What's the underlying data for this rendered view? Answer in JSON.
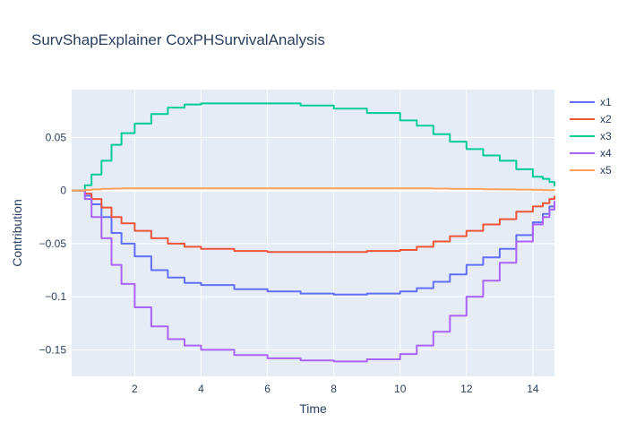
{
  "chart_data": {
    "type": "line",
    "line_shape": "step",
    "title": "SurvShapExplainer CoxPHSurvivalAnalysis",
    "xlabel": "Time",
    "ylabel": "Contribution",
    "xlim": [
      0.1,
      14.65
    ],
    "ylim": [
      -0.175,
      0.095
    ],
    "xticks": [
      2,
      4,
      6,
      8,
      10,
      12,
      14
    ],
    "xtick_labels": [
      "2",
      "4",
      "6",
      "8",
      "10",
      "12",
      "14"
    ],
    "yticks": [
      0.05,
      0,
      -0.05,
      -0.1,
      -0.15
    ],
    "ytick_labels": [
      "0.05",
      "0",
      "−0.05",
      "−0.1",
      "−0.15"
    ],
    "grid": true,
    "legend_position": "right",
    "background_color": "#e5ecf6",
    "x": [
      0.1,
      0.3,
      0.5,
      0.7,
      1.0,
      1.3,
      1.6,
      2.0,
      2.5,
      3.0,
      3.5,
      4.0,
      5.0,
      6.0,
      7.0,
      8.0,
      9.0,
      10.0,
      10.5,
      11.0,
      11.5,
      12.0,
      12.5,
      13.0,
      13.5,
      14.0,
      14.3,
      14.5,
      14.65
    ],
    "series": [
      {
        "name": "x1",
        "color": "#636efa",
        "values": [
          0,
          0,
          -0.005,
          -0.013,
          -0.025,
          -0.04,
          -0.05,
          -0.062,
          -0.075,
          -0.082,
          -0.087,
          -0.089,
          -0.093,
          -0.095,
          -0.097,
          -0.098,
          -0.097,
          -0.095,
          -0.092,
          -0.086,
          -0.079,
          -0.07,
          -0.063,
          -0.055,
          -0.042,
          -0.03,
          -0.022,
          -0.015,
          -0.01
        ]
      },
      {
        "name": "x2",
        "color": "#ef553b",
        "values": [
          0,
          0,
          -0.003,
          -0.008,
          -0.016,
          -0.025,
          -0.031,
          -0.038,
          -0.045,
          -0.05,
          -0.053,
          -0.055,
          -0.057,
          -0.058,
          -0.058,
          -0.058,
          -0.057,
          -0.056,
          -0.053,
          -0.048,
          -0.043,
          -0.038,
          -0.032,
          -0.027,
          -0.02,
          -0.015,
          -0.012,
          -0.008,
          -0.005
        ]
      },
      {
        "name": "x3",
        "color": "#00cc96",
        "values": [
          0,
          0,
          0.005,
          0.015,
          0.028,
          0.043,
          0.054,
          0.063,
          0.072,
          0.078,
          0.081,
          0.082,
          0.082,
          0.082,
          0.08,
          0.077,
          0.073,
          0.066,
          0.061,
          0.053,
          0.046,
          0.039,
          0.033,
          0.028,
          0.02,
          0.013,
          0.011,
          0.008,
          0.004
        ]
      },
      {
        "name": "x4",
        "color": "#ab63fa",
        "values": [
          0,
          0,
          -0.008,
          -0.025,
          -0.045,
          -0.07,
          -0.088,
          -0.11,
          -0.128,
          -0.14,
          -0.146,
          -0.15,
          -0.155,
          -0.158,
          -0.16,
          -0.161,
          -0.159,
          -0.154,
          -0.146,
          -0.133,
          -0.118,
          -0.1,
          -0.085,
          -0.068,
          -0.048,
          -0.032,
          -0.025,
          -0.018,
          -0.01
        ]
      },
      {
        "name": "x5",
        "color": "#ffa15a",
        "values": [
          0,
          0,
          0.0005,
          0.001,
          0.0015,
          0.0018,
          0.002,
          0.002,
          0.002,
          0.002,
          0.002,
          0.002,
          0.002,
          0.002,
          0.002,
          0.002,
          0.002,
          0.002,
          0.002,
          0.0018,
          0.0016,
          0.0014,
          0.0012,
          0.001,
          0.0008,
          0.0006,
          0.0004,
          0.0003,
          0.0002
        ]
      }
    ]
  }
}
